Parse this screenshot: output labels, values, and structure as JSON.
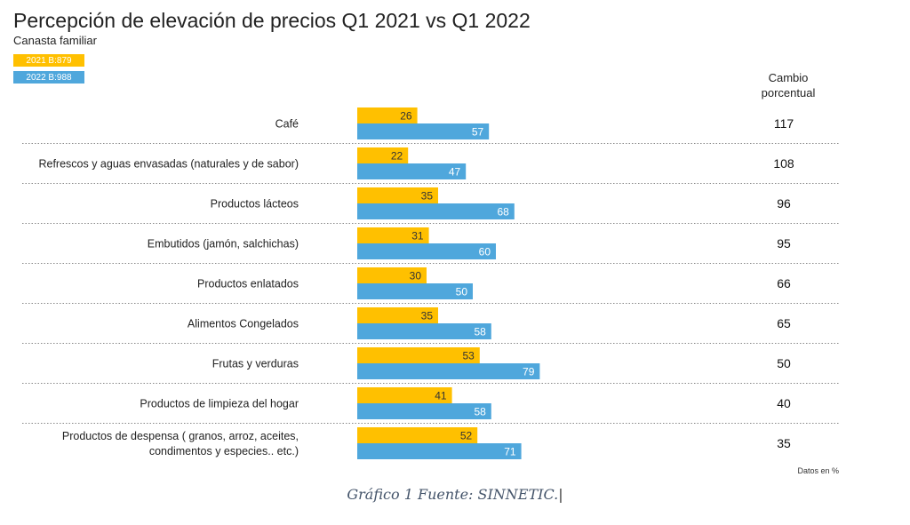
{
  "header": {
    "title": "Percepción de elevación de precios Q1 2021 vs Q1 2022",
    "subtitle": "Canasta familiar"
  },
  "legend": {
    "item_2021": "2021 B:879",
    "item_2022": "2022 B:988"
  },
  "change_header": {
    "line1": "Cambio",
    "line2": "porcentual"
  },
  "colors": {
    "series_2021": "#FFC000",
    "series_2022": "#4FA7DC",
    "separator": "#888888"
  },
  "chart_data": {
    "type": "bar",
    "orientation": "horizontal",
    "categories": [
      [
        "Café"
      ],
      [
        "Refrescos y aguas envasadas (naturales y de sabor)"
      ],
      [
        "Productos lácteos"
      ],
      [
        "Embutidos (jamón, salchichas)"
      ],
      [
        "Productos enlatados"
      ],
      [
        "Alimentos Congelados"
      ],
      [
        "Frutas y verduras"
      ],
      [
        "Productos de limpieza del hogar"
      ],
      [
        "Productos de despensa ( granos, arroz, aceites,",
        "condimentos y especies.. etc.)"
      ]
    ],
    "series": [
      {
        "name": "2021 B:879",
        "values": [
          26,
          22,
          35,
          31,
          30,
          35,
          53,
          41,
          52
        ]
      },
      {
        "name": "2022 B:988",
        "values": [
          57,
          47,
          68,
          60,
          50,
          58,
          79,
          58,
          71
        ]
      }
    ],
    "change_percent": [
      117,
      108,
      96,
      95,
      66,
      65,
      50,
      40,
      35
    ],
    "xlim": [
      0,
      100
    ],
    "grid": false,
    "legend_position": "top-left",
    "note": "Datos en %"
  },
  "source": {
    "text": "Gráfico 1 Fuente: SINNETIC."
  }
}
